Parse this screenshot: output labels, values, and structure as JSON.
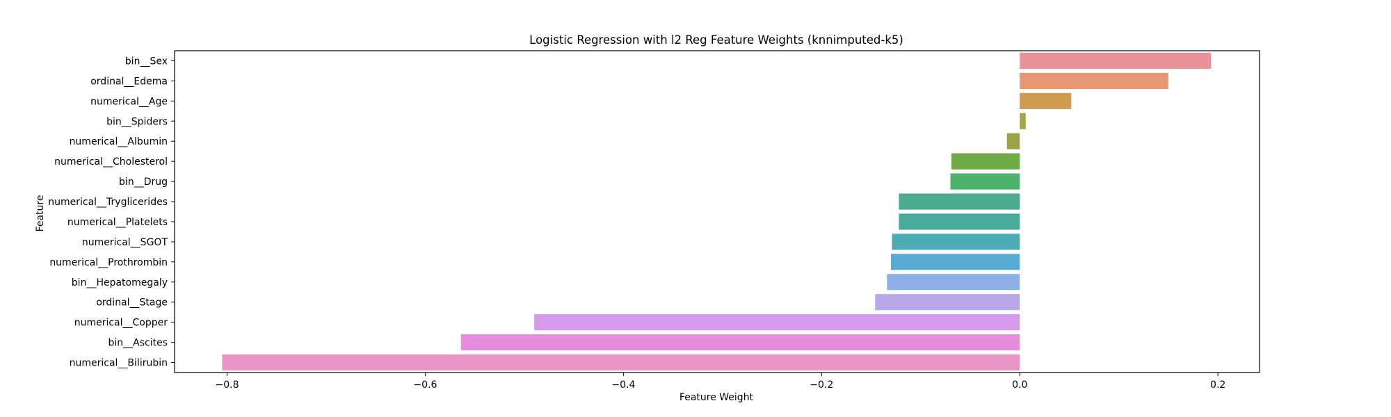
{
  "chart_data": {
    "type": "bar",
    "orientation": "horizontal",
    "title": "Logistic Regression with l2 Reg Feature Weights (knnimputed-k5)",
    "xlabel": "Feature Weight",
    "ylabel": "Feature",
    "xlim": [
      -0.853,
      0.242
    ],
    "xticks": [
      -0.8,
      -0.6,
      -0.4,
      -0.2,
      0.0,
      0.2
    ],
    "xtick_labels": [
      "−0.8",
      "−0.6",
      "−0.4",
      "−0.2",
      "0.0",
      "0.2"
    ],
    "grid": false,
    "categories": [
      "bin__Sex",
      "ordinal__Edema",
      "numerical__Age",
      "bin__Spiders",
      "numerical__Albumin",
      "numerical__Cholesterol",
      "bin__Drug",
      "numerical__Tryglicerides",
      "numerical__Platelets",
      "numerical__SGOT",
      "numerical__Prothrombin",
      "bin__Hepatomegaly",
      "ordinal__Stage",
      "numerical__Copper",
      "bin__Ascites",
      "numerical__Bilirubin"
    ],
    "values": [
      0.193,
      0.15,
      0.052,
      0.006,
      -0.013,
      -0.069,
      -0.07,
      -0.122,
      -0.122,
      -0.129,
      -0.13,
      -0.134,
      -0.146,
      -0.49,
      -0.564,
      -0.805
    ],
    "colors": [
      "#e8919b",
      "#e69874",
      "#cd9b50",
      "#a3a647",
      "#9ba443",
      "#6fab45",
      "#4cb26c",
      "#4aab8e",
      "#49ab9a",
      "#4cabb4",
      "#56aad4",
      "#8cb0e6",
      "#b9a7ea",
      "#d59aea",
      "#e78cdd",
      "#e996c6"
    ]
  }
}
